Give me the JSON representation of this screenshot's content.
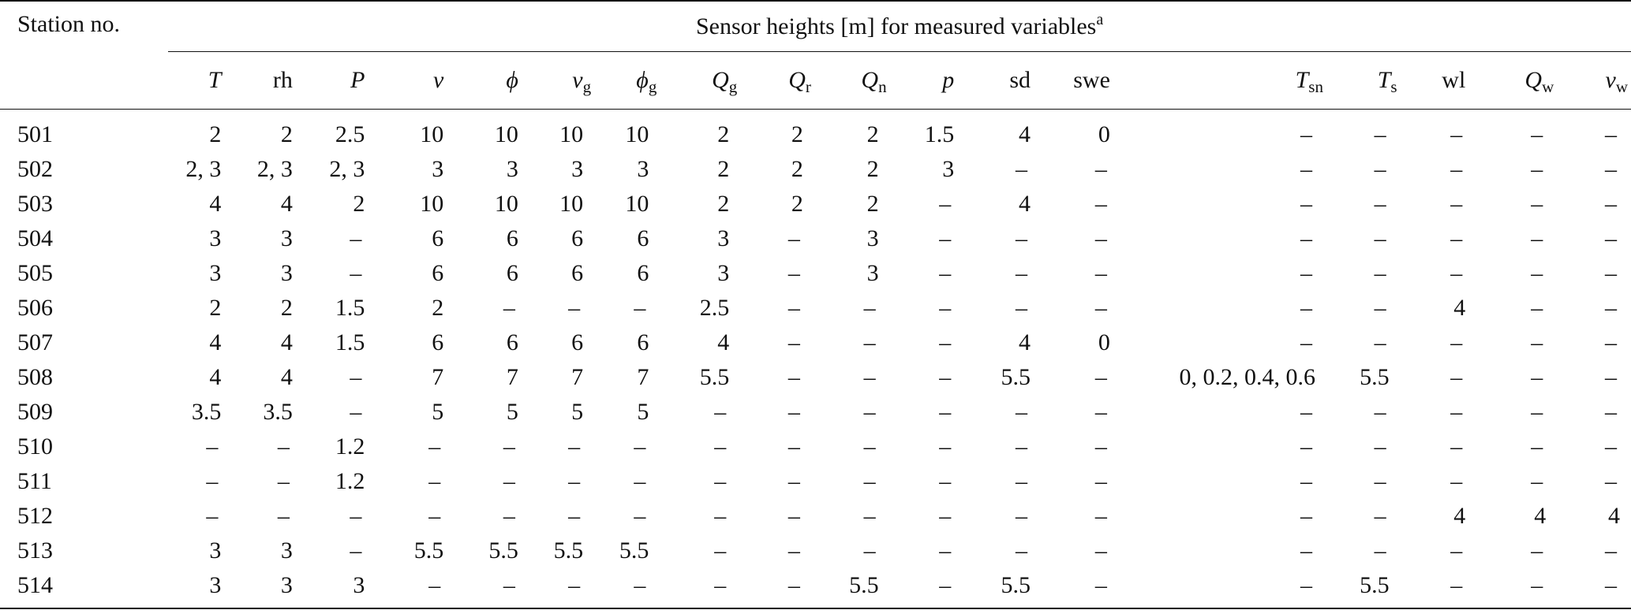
{
  "header": {
    "station": "Station no.",
    "group": "Sensor heights [m] for measured variables",
    "group_sup": "a"
  },
  "columns": [
    {
      "main": "T",
      "sub": "",
      "italic": true
    },
    {
      "main": "rh",
      "sub": "",
      "italic": false
    },
    {
      "main": "P",
      "sub": "",
      "italic": true
    },
    {
      "main": "v",
      "sub": "",
      "italic": true
    },
    {
      "main": "ϕ",
      "sub": "",
      "italic": true
    },
    {
      "main": "v",
      "sub": "g",
      "italic": true
    },
    {
      "main": "ϕ",
      "sub": "g",
      "italic": true
    },
    {
      "main": "Q",
      "sub": "g",
      "italic": true
    },
    {
      "main": "Q",
      "sub": "r",
      "italic": true
    },
    {
      "main": "Q",
      "sub": "n",
      "italic": true
    },
    {
      "main": "p",
      "sub": "",
      "italic": true
    },
    {
      "main": "sd",
      "sub": "",
      "italic": false
    },
    {
      "main": "swe",
      "sub": "",
      "italic": false
    },
    {
      "main": "T",
      "sub": "sn",
      "italic": true
    },
    {
      "main": "T",
      "sub": "s",
      "italic": true
    },
    {
      "main": "wl",
      "sub": "",
      "italic": false
    },
    {
      "main": "Q",
      "sub": "w",
      "italic": true
    },
    {
      "main": "v",
      "sub": "w",
      "italic": true
    }
  ],
  "rows": [
    {
      "station": "501",
      "cells": [
        "2",
        "2",
        "2.5",
        "10",
        "10",
        "10",
        "10",
        "2",
        "2",
        "2",
        "1.5",
        "4",
        "0",
        "–",
        "–",
        "–",
        "–",
        "–"
      ]
    },
    {
      "station": "502",
      "cells": [
        "2, 3",
        "2, 3",
        "2, 3",
        "3",
        "3",
        "3",
        "3",
        "2",
        "2",
        "2",
        "3",
        "–",
        "–",
        "–",
        "–",
        "–",
        "–",
        "–"
      ]
    },
    {
      "station": "503",
      "cells": [
        "4",
        "4",
        "2",
        "10",
        "10",
        "10",
        "10",
        "2",
        "2",
        "2",
        "–",
        "4",
        "–",
        "–",
        "–",
        "–",
        "–",
        "–"
      ]
    },
    {
      "station": "504",
      "cells": [
        "3",
        "3",
        "–",
        "6",
        "6",
        "6",
        "6",
        "3",
        "–",
        "3",
        "–",
        "–",
        "–",
        "–",
        "–",
        "–",
        "–",
        "–"
      ]
    },
    {
      "station": "505",
      "cells": [
        "3",
        "3",
        "–",
        "6",
        "6",
        "6",
        "6",
        "3",
        "–",
        "3",
        "–",
        "–",
        "–",
        "–",
        "–",
        "–",
        "–",
        "–"
      ]
    },
    {
      "station": "506",
      "cells": [
        "2",
        "2",
        "1.5",
        "2",
        "–",
        "–",
        "–",
        "2.5",
        "–",
        "–",
        "–",
        "–",
        "–",
        "–",
        "–",
        "4",
        "–",
        "–"
      ]
    },
    {
      "station": "507",
      "cells": [
        "4",
        "4",
        "1.5",
        "6",
        "6",
        "6",
        "6",
        "4",
        "–",
        "–",
        "–",
        "4",
        "0",
        "–",
        "–",
        "–",
        "–",
        "–"
      ]
    },
    {
      "station": "508",
      "cells": [
        "4",
        "4",
        "–",
        "7",
        "7",
        "7",
        "7",
        "5.5",
        "–",
        "–",
        "–",
        "5.5",
        "–",
        "0, 0.2, 0.4, 0.6",
        "5.5",
        "–",
        "–",
        "–"
      ]
    },
    {
      "station": "509",
      "cells": [
        "3.5",
        "3.5",
        "–",
        "5",
        "5",
        "5",
        "5",
        "–",
        "–",
        "–",
        "–",
        "–",
        "–",
        "–",
        "–",
        "–",
        "–",
        "–"
      ]
    },
    {
      "station": "510",
      "cells": [
        "–",
        "–",
        "1.2",
        "–",
        "–",
        "–",
        "–",
        "–",
        "–",
        "–",
        "–",
        "–",
        "–",
        "–",
        "–",
        "–",
        "–",
        "–"
      ]
    },
    {
      "station": "511",
      "cells": [
        "–",
        "–",
        "1.2",
        "–",
        "–",
        "–",
        "–",
        "–",
        "–",
        "–",
        "–",
        "–",
        "–",
        "–",
        "–",
        "–",
        "–",
        "–"
      ]
    },
    {
      "station": "512",
      "cells": [
        "–",
        "–",
        "–",
        "–",
        "–",
        "–",
        "–",
        "–",
        "–",
        "–",
        "–",
        "–",
        "–",
        "–",
        "–",
        "4",
        "4",
        "4"
      ]
    },
    {
      "station": "513",
      "cells": [
        "3",
        "3",
        "–",
        "5.5",
        "5.5",
        "5.5",
        "5.5",
        "–",
        "–",
        "–",
        "–",
        "–",
        "–",
        "–",
        "–",
        "–",
        "–",
        "–"
      ]
    },
    {
      "station": "514",
      "cells": [
        "3",
        "3",
        "3",
        "–",
        "–",
        "–",
        "–",
        "–",
        "–",
        "5.5",
        "–",
        "5.5",
        "–",
        "–",
        "5.5",
        "–",
        "–",
        "–"
      ]
    }
  ]
}
